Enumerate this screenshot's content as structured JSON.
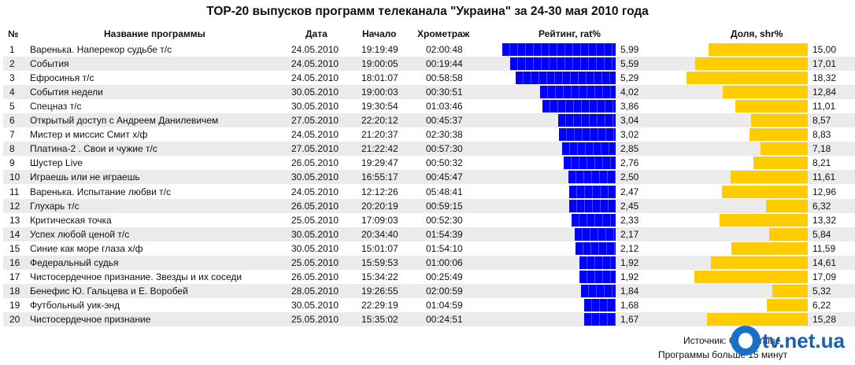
{
  "title": "TOP-20 выпусков программ телеканала \"Украина\" за 24-30 мая 2010 года",
  "headers": {
    "num": "№",
    "name": "Название программы",
    "date": "Дата",
    "start": "Начало",
    "duration": "Хрометраж",
    "rating": "Рейтинг, rat%",
    "share": "Доля, shr%"
  },
  "colors": {
    "rating": "#0000ff",
    "share": "#ffcc00",
    "stripe": "#ebebeb"
  },
  "footer": {
    "source": "Источник: GfK Ukraine",
    "note": "Программы больше 15 минут",
    "logo": "tv.net.ua"
  },
  "chart_data": {
    "type": "table",
    "rows": [
      {
        "num": "1",
        "name": "Варенька. Наперекор судьбе т/с",
        "date": "24.05.2010",
        "start": "19:19:49",
        "duration": "02:00:48",
        "rating": 5.99,
        "rating_label": "5,99",
        "share": 15.0,
        "share_label": "15,00"
      },
      {
        "num": "2",
        "name": "События",
        "date": "24.05.2010",
        "start": "19:00:05",
        "duration": "00:19:44",
        "rating": 5.59,
        "rating_label": "5,59",
        "share": 17.01,
        "share_label": "17,01"
      },
      {
        "num": "3",
        "name": "Ефросинья т/с",
        "date": "24.05.2010",
        "start": "18:01:07",
        "duration": "00:58:58",
        "rating": 5.29,
        "rating_label": "5,29",
        "share": 18.32,
        "share_label": "18,32"
      },
      {
        "num": "4",
        "name": "События недели",
        "date": "30.05.2010",
        "start": "19:00:03",
        "duration": "00:30:51",
        "rating": 4.02,
        "rating_label": "4,02",
        "share": 12.84,
        "share_label": "12,84"
      },
      {
        "num": "5",
        "name": "Спецназ т/с",
        "date": "30.05.2010",
        "start": "19:30:54",
        "duration": "01:03:46",
        "rating": 3.86,
        "rating_label": "3,86",
        "share": 11.01,
        "share_label": "11,01"
      },
      {
        "num": "6",
        "name": "Открытый доступ с Андреем Данилевичем",
        "date": "27.05.2010",
        "start": "22:20:12",
        "duration": "00:45:37",
        "rating": 3.04,
        "rating_label": "3,04",
        "share": 8.57,
        "share_label": "8,57"
      },
      {
        "num": "7",
        "name": "Мистер и миссис Смит х/ф",
        "date": "24.05.2010",
        "start": "21:20:37",
        "duration": "02:30:38",
        "rating": 3.02,
        "rating_label": "3,02",
        "share": 8.83,
        "share_label": "8,83"
      },
      {
        "num": "8",
        "name": "Платина-2 . Свои и чужие т/с",
        "date": "27.05.2010",
        "start": "21:22:42",
        "duration": "00:57:30",
        "rating": 2.85,
        "rating_label": "2,85",
        "share": 7.18,
        "share_label": "7,18"
      },
      {
        "num": "9",
        "name": "Шустер Live",
        "date": "26.05.2010",
        "start": "19:29:47",
        "duration": "00:50:32",
        "rating": 2.76,
        "rating_label": "2,76",
        "share": 8.21,
        "share_label": "8,21"
      },
      {
        "num": "10",
        "name": "Играешь или не играешь",
        "date": "30.05.2010",
        "start": "16:55:17",
        "duration": "00:45:47",
        "rating": 2.5,
        "rating_label": "2,50",
        "share": 11.61,
        "share_label": "11,61"
      },
      {
        "num": "11",
        "name": "Варенька. Испытание любви т/с",
        "date": "24.05.2010",
        "start": "12:12:26",
        "duration": "05:48:41",
        "rating": 2.47,
        "rating_label": "2,47",
        "share": 12.96,
        "share_label": "12,96"
      },
      {
        "num": "12",
        "name": "Глухарь т/с",
        "date": "26.05.2010",
        "start": "20:20:19",
        "duration": "00:59:15",
        "rating": 2.45,
        "rating_label": "2,45",
        "share": 6.32,
        "share_label": "6,32"
      },
      {
        "num": "13",
        "name": "Критическая точка",
        "date": "25.05.2010",
        "start": "17:09:03",
        "duration": "00:52:30",
        "rating": 2.33,
        "rating_label": "2,33",
        "share": 13.32,
        "share_label": "13,32"
      },
      {
        "num": "14",
        "name": "Успех любой ценой т/с",
        "date": "30.05.2010",
        "start": "20:34:40",
        "duration": "01:54:39",
        "rating": 2.17,
        "rating_label": "2,17",
        "share": 5.84,
        "share_label": "5,84"
      },
      {
        "num": "15",
        "name": "Синие как море глаза х/ф",
        "date": "30.05.2010",
        "start": "15:01:07",
        "duration": "01:54:10",
        "rating": 2.12,
        "rating_label": "2,12",
        "share": 11.59,
        "share_label": "11,59"
      },
      {
        "num": "16",
        "name": "Федеральный судья",
        "date": "25.05.2010",
        "start": "15:59:53",
        "duration": "01:00:06",
        "rating": 1.92,
        "rating_label": "1,92",
        "share": 14.61,
        "share_label": "14,61"
      },
      {
        "num": "17",
        "name": "Чистосердечное признание. Звезды и их соседи",
        "date": "26.05.2010",
        "start": "15:34:22",
        "duration": "00:25:49",
        "rating": 1.92,
        "rating_label": "1,92",
        "share": 17.09,
        "share_label": "17,09"
      },
      {
        "num": "18",
        "name": "Бенефис Ю. Гальцева и Е. Воробей",
        "date": "28.05.2010",
        "start": "19:26:55",
        "duration": "02:00:59",
        "rating": 1.84,
        "rating_label": "1,84",
        "share": 5.32,
        "share_label": "5,32"
      },
      {
        "num": "19",
        "name": "Футбольный уик-энд",
        "date": "30.05.2010",
        "start": "22:29:19",
        "duration": "01:04:59",
        "rating": 1.68,
        "rating_label": "1,68",
        "share": 6.22,
        "share_label": "6,22"
      },
      {
        "num": "20",
        "name": "Чистосердечное признание",
        "date": "25.05.2010",
        "start": "15:35:02",
        "duration": "00:24:51",
        "rating": 1.67,
        "rating_label": "1,67",
        "share": 15.28,
        "share_label": "15,28"
      }
    ]
  }
}
